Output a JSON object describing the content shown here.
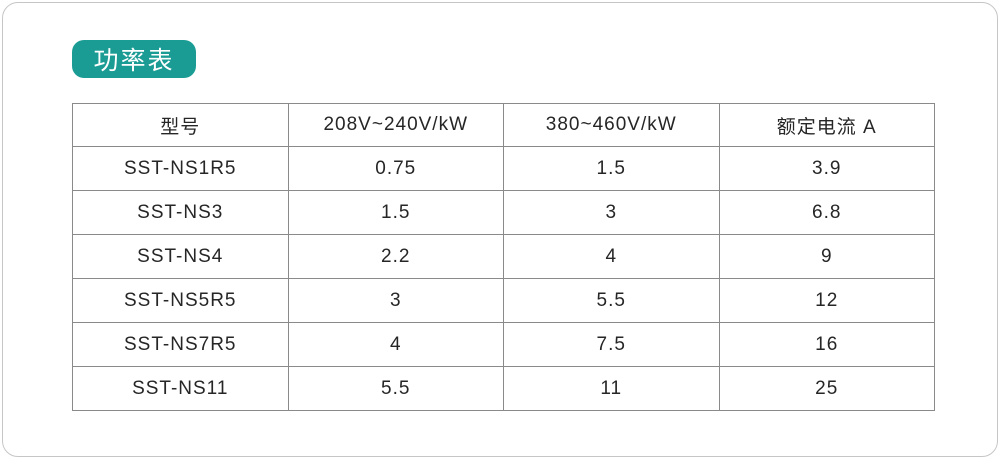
{
  "page": {
    "background": "#ffffff",
    "outline_color": "#c6c6c6"
  },
  "title_badge": {
    "label": "功率表",
    "background": "#1a9c94",
    "text_color": "#ffffff"
  },
  "table": {
    "border_color": "#8a8a8a",
    "text_color": "#262626",
    "columns": [
      "型号",
      "208V~240V/kW",
      "380~460V/kW",
      "额定电流 A"
    ],
    "rows": [
      [
        "SST-NS1R5",
        "0.75",
        "1.5",
        "3.9"
      ],
      [
        "SST-NS3",
        "1.5",
        "3",
        "6.8"
      ],
      [
        "SST-NS4",
        "2.2",
        "4",
        "9"
      ],
      [
        "SST-NS5R5",
        "3",
        "5.5",
        "12"
      ],
      [
        "SST-NS7R5",
        "4",
        "7.5",
        "16"
      ],
      [
        "SST-NS11",
        "5.5",
        "11",
        "25"
      ]
    ]
  }
}
